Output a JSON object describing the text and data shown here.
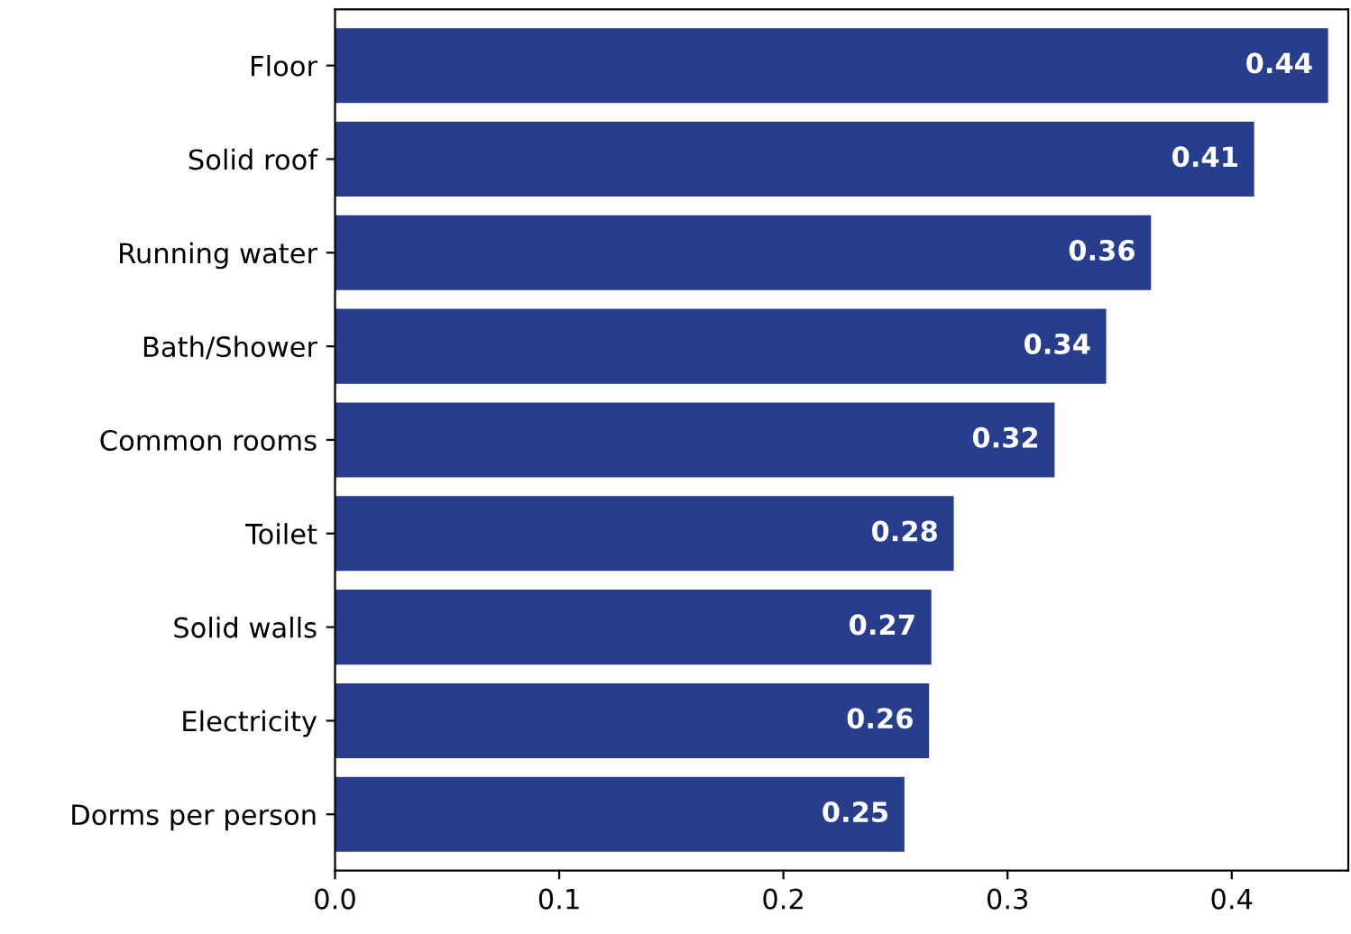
{
  "chart_data": {
    "type": "bar",
    "orientation": "horizontal",
    "categories": [
      "Floor",
      "Solid roof",
      "Running water",
      "Bath/Shower",
      "Common rooms",
      "Toilet",
      "Solid walls",
      "Electricity",
      "Dorms per person"
    ],
    "values": [
      0.443,
      0.41,
      0.364,
      0.344,
      0.321,
      0.276,
      0.266,
      0.265,
      0.254
    ],
    "value_labels": [
      "0.44",
      "0.41",
      "0.36",
      "0.34",
      "0.32",
      "0.28",
      "0.27",
      "0.26",
      "0.25"
    ],
    "color": "#283d8b",
    "xlim": [
      0,
      0.452
    ],
    "xticks": [
      {
        "value": 0,
        "label": "0.0"
      },
      0.1,
      0.2,
      0.3,
      0.4
    ],
    "grid": false,
    "legend": false
  }
}
